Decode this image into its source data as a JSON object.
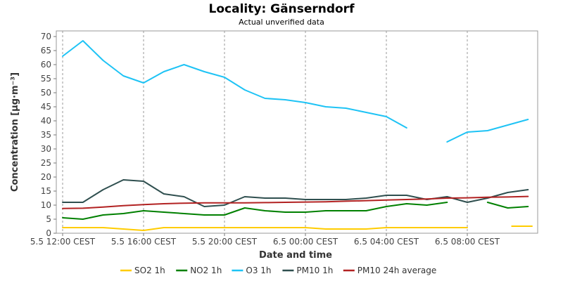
{
  "chart_data": {
    "type": "line",
    "title": "Locality: Gänserndorf",
    "subtitle": "Actual unverified data",
    "xlabel": "Date and time",
    "ylabel": "Concentration [µg·m⁻³]",
    "ylim": [
      0,
      72
    ],
    "xlim": [
      0,
      23.6
    ],
    "yticks": [
      0,
      5,
      10,
      15,
      20,
      25,
      30,
      35,
      40,
      45,
      50,
      55,
      60,
      65,
      70
    ],
    "xticks": [
      {
        "x": 0,
        "label": "5.5 12:00 CEST"
      },
      {
        "x": 4,
        "label": "5.5 16:00 CEST"
      },
      {
        "x": 8,
        "label": "5.5 20:00 CEST"
      },
      {
        "x": 12,
        "label": "6.5 00:00 CEST"
      },
      {
        "x": 16,
        "label": "6.5 04:00 CEST"
      },
      {
        "x": 20,
        "label": "6.5 08:00 CEST"
      }
    ],
    "grid": true,
    "legend_position": "bottom",
    "series": [
      {
        "name": "SO2 1h",
        "color": "#ffcc00",
        "values": [
          [
            0,
            2
          ],
          [
            1,
            2
          ],
          [
            2,
            2
          ],
          [
            3,
            1.5
          ],
          [
            4,
            1
          ],
          [
            5,
            2
          ],
          [
            6,
            2
          ],
          [
            7,
            2
          ],
          [
            8,
            2
          ],
          [
            9,
            2
          ],
          [
            10,
            2
          ],
          [
            11,
            2
          ],
          [
            12,
            2
          ],
          [
            13,
            1.5
          ],
          [
            14,
            1.5
          ],
          [
            15,
            1.5
          ],
          [
            16,
            2
          ],
          [
            17,
            2
          ],
          [
            18,
            2
          ],
          [
            19,
            2
          ],
          [
            20,
            2
          ],
          null,
          [
            22.2,
            2.5
          ],
          [
            23.2,
            2.5
          ]
        ]
      },
      {
        "name": "NO2 1h",
        "color": "#008000",
        "values": [
          [
            0,
            5.5
          ],
          [
            1,
            5
          ],
          [
            2,
            6.5
          ],
          [
            3,
            7
          ],
          [
            4,
            8
          ],
          [
            5,
            7.5
          ],
          [
            6,
            7
          ],
          [
            7,
            6.5
          ],
          [
            8,
            6.5
          ],
          [
            9,
            9
          ],
          [
            10,
            8
          ],
          [
            11,
            7.5
          ],
          [
            12,
            7.5
          ],
          [
            13,
            8
          ],
          [
            14,
            8
          ],
          [
            15,
            8
          ],
          [
            16,
            9.5
          ],
          [
            17,
            10.5
          ],
          [
            18,
            10
          ],
          [
            19,
            11
          ],
          null,
          [
            21,
            11
          ],
          [
            22,
            9
          ],
          [
            23,
            9.5
          ]
        ]
      },
      {
        "name": "O3 1h",
        "color": "#1ec3f5",
        "values": [
          [
            0,
            63
          ],
          [
            1,
            68.5
          ],
          [
            2,
            61.5
          ],
          [
            3,
            56
          ],
          [
            4,
            53.5
          ],
          [
            5,
            57.5
          ],
          [
            6,
            60
          ],
          [
            7,
            57.5
          ],
          [
            8,
            55.5
          ],
          [
            9,
            51
          ],
          [
            10,
            48
          ],
          [
            11,
            47.5
          ],
          [
            12,
            46.5
          ],
          [
            13,
            45
          ],
          [
            14,
            44.5
          ],
          [
            15,
            43
          ],
          [
            16,
            41.5
          ],
          [
            17,
            37.5
          ],
          null,
          [
            19,
            32.5
          ],
          [
            20,
            36
          ],
          [
            21,
            36.5
          ],
          [
            22,
            38.5
          ],
          [
            23,
            40.5
          ]
        ]
      },
      {
        "name": "PM10 1h",
        "color": "#2f4f4f",
        "values": [
          [
            0,
            11
          ],
          [
            1,
            11
          ],
          [
            2,
            15.5
          ],
          [
            3,
            19
          ],
          [
            4,
            18.5
          ],
          [
            5,
            14
          ],
          [
            6,
            13
          ],
          [
            7,
            9.5
          ],
          [
            8,
            10
          ],
          [
            9,
            13
          ],
          [
            10,
            12.5
          ],
          [
            11,
            12.5
          ],
          [
            12,
            12
          ],
          [
            13,
            12
          ],
          [
            14,
            12
          ],
          [
            15,
            12.5
          ],
          [
            16,
            13.5
          ],
          [
            17,
            13.5
          ],
          [
            18,
            12
          ],
          [
            19,
            13
          ],
          [
            20,
            11
          ],
          [
            21,
            12.5
          ],
          [
            22,
            14.5
          ],
          [
            23,
            15.5
          ]
        ]
      },
      {
        "name": "PM10 24h average",
        "color": "#b22222",
        "values": [
          [
            0,
            8.8
          ],
          [
            1,
            8.9
          ],
          [
            2,
            9.3
          ],
          [
            3,
            9.8
          ],
          [
            4,
            10.2
          ],
          [
            5,
            10.5
          ],
          [
            6,
            10.7
          ],
          [
            7,
            10.8
          ],
          [
            8,
            10.8
          ],
          [
            9,
            10.8
          ],
          [
            10,
            10.9
          ],
          [
            11,
            11
          ],
          [
            12,
            11.1
          ],
          [
            13,
            11.2
          ],
          [
            14,
            11.4
          ],
          [
            15,
            11.6
          ],
          [
            16,
            11.8
          ],
          [
            17,
            12
          ],
          [
            18,
            12.2
          ],
          [
            19,
            12.5
          ],
          [
            20,
            12.6
          ],
          [
            21,
            12.8
          ],
          [
            22,
            12.9
          ],
          [
            23,
            13.1
          ]
        ]
      }
    ]
  }
}
